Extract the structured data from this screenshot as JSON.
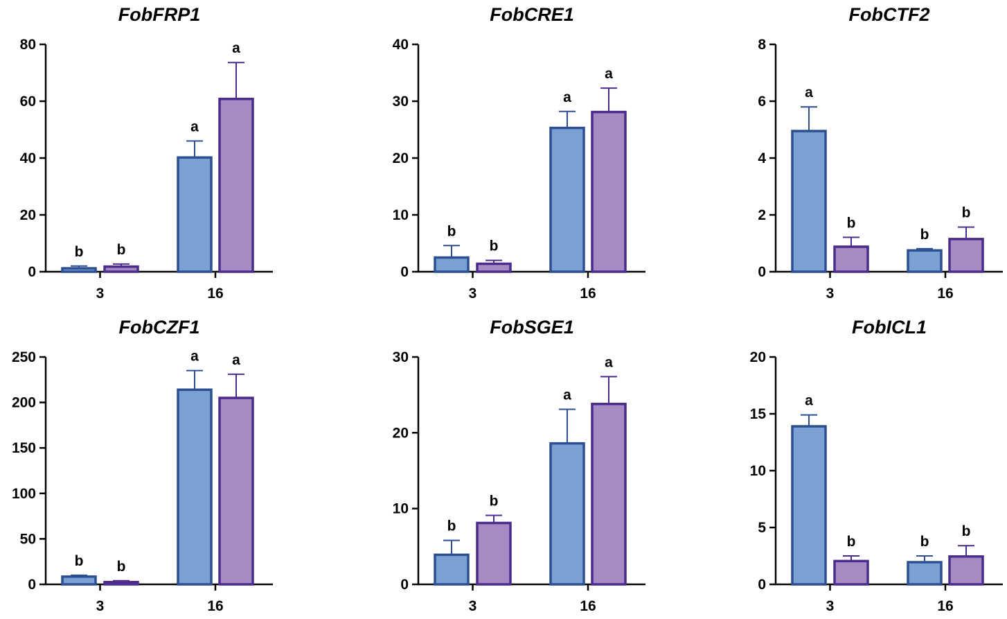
{
  "colors": {
    "series_a_fill": "#7ba1d4",
    "series_a_stroke": "#2b4f91",
    "series_b_fill": "#a58ac4",
    "series_b_stroke": "#4b2b8c",
    "axis": "#000000",
    "error_bar_a": "#2b4f91",
    "error_bar_b": "#4b2b8c"
  },
  "chart_data": [
    {
      "type": "bar",
      "title": "FobFRP1",
      "categories": [
        "3",
        "16"
      ],
      "ylim": [
        0,
        80
      ],
      "yticks": [
        0,
        20,
        40,
        60,
        80
      ],
      "series": [
        {
          "name": "series-1",
          "values": [
            1.2,
            40.2
          ],
          "errors": [
            0.8,
            5.8
          ],
          "letters": [
            "b",
            "a"
          ]
        },
        {
          "name": "series-2",
          "values": [
            1.8,
            60.8
          ],
          "errors": [
            0.9,
            12.8
          ],
          "letters": [
            "b",
            "a"
          ]
        }
      ]
    },
    {
      "type": "bar",
      "title": "FobCRE1",
      "categories": [
        "3",
        "16"
      ],
      "ylim": [
        0,
        40
      ],
      "yticks": [
        0,
        10,
        20,
        30,
        40
      ],
      "series": [
        {
          "name": "series-1",
          "values": [
            2.5,
            25.3
          ],
          "errors": [
            2.1,
            2.9
          ],
          "letters": [
            "b",
            "a"
          ]
        },
        {
          "name": "series-2",
          "values": [
            1.4,
            28.1
          ],
          "errors": [
            0.6,
            4.2
          ],
          "letters": [
            "b",
            "a"
          ]
        }
      ]
    },
    {
      "type": "bar",
      "title": "FobCTF2",
      "categories": [
        "3",
        "16"
      ],
      "ylim": [
        0,
        8
      ],
      "yticks": [
        0,
        2,
        4,
        6,
        8
      ],
      "series": [
        {
          "name": "series-1",
          "values": [
            4.95,
            0.75
          ],
          "errors": [
            0.85,
            0.06
          ],
          "letters": [
            "a",
            "b"
          ]
        },
        {
          "name": "series-2",
          "values": [
            0.88,
            1.15
          ],
          "errors": [
            0.33,
            0.42
          ],
          "letters": [
            "b",
            "b"
          ]
        }
      ]
    },
    {
      "type": "bar",
      "title": "FobCZF1",
      "categories": [
        "3",
        "16"
      ],
      "ylim": [
        0,
        250
      ],
      "yticks": [
        0,
        50,
        100,
        150,
        200,
        250
      ],
      "series": [
        {
          "name": "series-1",
          "values": [
            8.5,
            214
          ],
          "errors": [
            1.5,
            21
          ],
          "letters": [
            "b",
            "a"
          ]
        },
        {
          "name": "series-2",
          "values": [
            2.5,
            205
          ],
          "errors": [
            1.5,
            26
          ],
          "letters": [
            "b",
            "a"
          ]
        }
      ]
    },
    {
      "type": "bar",
      "title": "FobSGE1",
      "categories": [
        "3",
        "16"
      ],
      "ylim": [
        0,
        30
      ],
      "yticks": [
        0,
        10,
        20,
        30
      ],
      "series": [
        {
          "name": "series-1",
          "values": [
            3.9,
            18.6
          ],
          "errors": [
            1.9,
            4.5
          ],
          "letters": [
            "b",
            "a"
          ]
        },
        {
          "name": "series-2",
          "values": [
            8.1,
            23.8
          ],
          "errors": [
            1.0,
            3.6
          ],
          "letters": [
            "b",
            "a"
          ]
        }
      ]
    },
    {
      "type": "bar",
      "title": "FobICL1",
      "categories": [
        "3",
        "16"
      ],
      "ylim": [
        0,
        20
      ],
      "yticks": [
        0,
        5,
        10,
        15,
        20
      ],
      "series": [
        {
          "name": "series-1",
          "values": [
            13.9,
            1.95
          ],
          "errors": [
            1.0,
            0.55
          ],
          "letters": [
            "a",
            "b"
          ]
        },
        {
          "name": "series-2",
          "values": [
            2.05,
            2.45
          ],
          "errors": [
            0.45,
            0.95
          ],
          "letters": [
            "b",
            "b"
          ]
        }
      ]
    }
  ]
}
